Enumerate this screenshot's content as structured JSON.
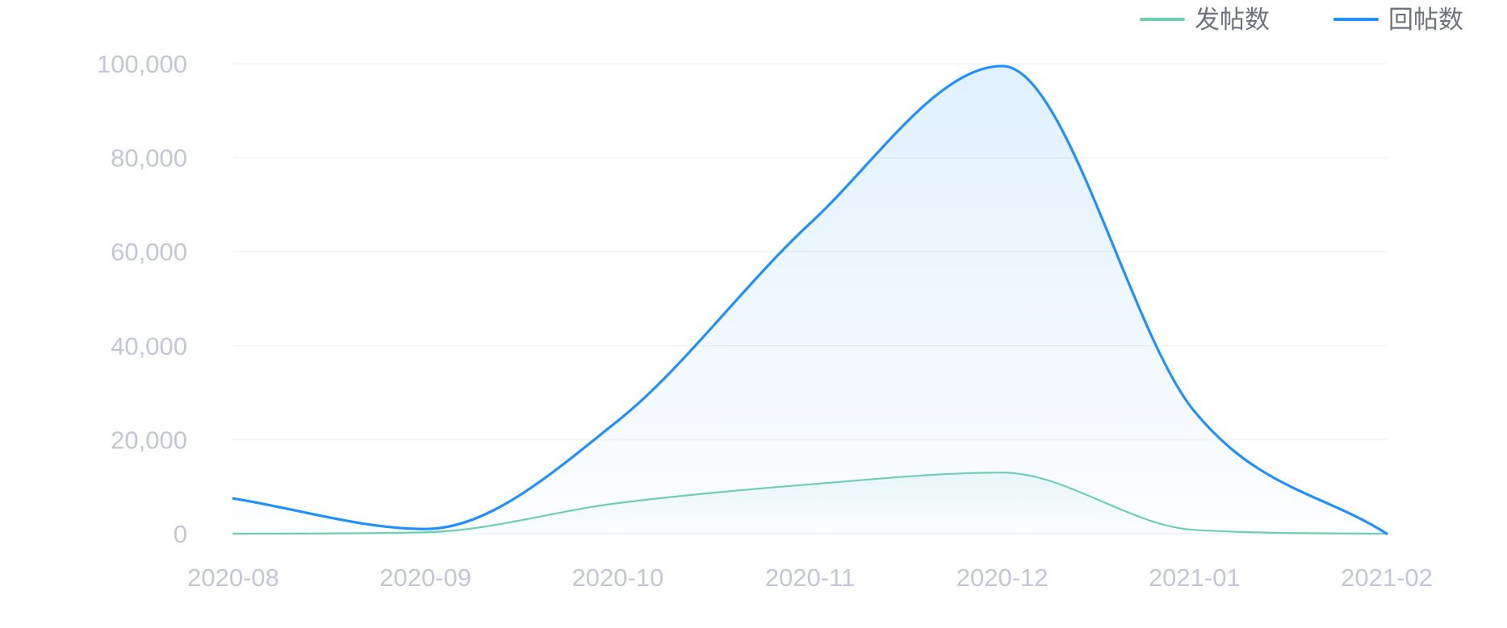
{
  "chart_data": {
    "type": "area",
    "title": "",
    "xlabel": "",
    "ylabel": "",
    "categories": [
      "2020-08",
      "2020-09",
      "2020-10",
      "2020-11",
      "2020-12",
      "2021-01",
      "2021-02"
    ],
    "y_ticks": [
      "0",
      "20,000",
      "40,000",
      "60,000",
      "80,000",
      "100,000"
    ],
    "ylim": [
      0,
      100000
    ],
    "grid": true,
    "legend_position": "top-right",
    "series": [
      {
        "name": "发帖数",
        "color": "#6cd0b0",
        "values": [
          0,
          300,
          6500,
          10500,
          13000,
          800,
          0
        ]
      },
      {
        "name": "回帖数",
        "color": "#1e90ff",
        "values": [
          7500,
          1000,
          24000,
          66000,
          99500,
          26000,
          0
        ]
      }
    ]
  }
}
